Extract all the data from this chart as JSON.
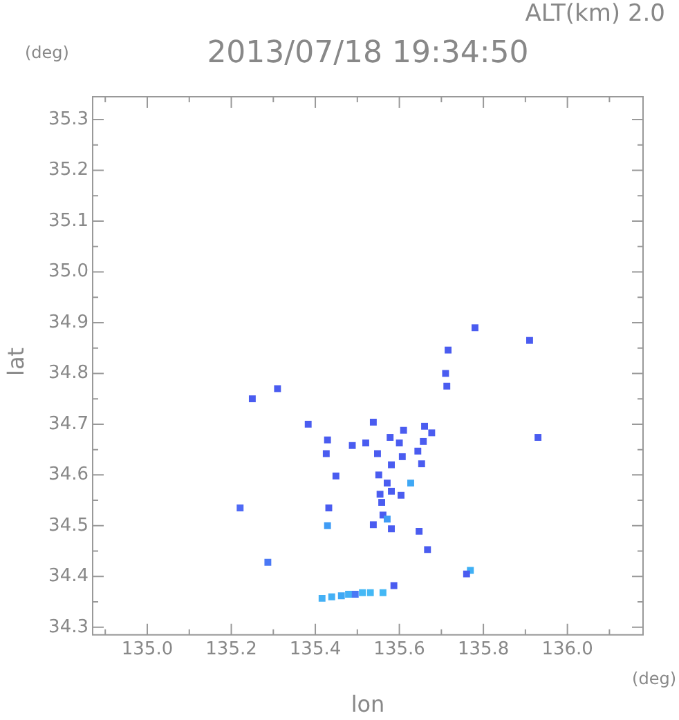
{
  "chart_data": {
    "type": "scatter",
    "title": "2013/07/18 19:34:50",
    "subtitle": "ALT(km) 2.0",
    "xlabel": "lon",
    "ylabel": "lat",
    "annotations": [
      "(deg)",
      "(deg)"
    ],
    "marker": "square",
    "grid": false,
    "xlim": [
      134.87,
      136.18
    ],
    "ylim": [
      34.285,
      35.345
    ],
    "xticks": [
      {
        "value": 134.9,
        "label": null
      },
      {
        "value": 135.0,
        "label": "135.0"
      },
      {
        "value": 135.1,
        "label": null
      },
      {
        "value": 135.2,
        "label": "135.2"
      },
      {
        "value": 135.3,
        "label": null
      },
      {
        "value": 135.4,
        "label": "135.4"
      },
      {
        "value": 135.5,
        "label": null
      },
      {
        "value": 135.6,
        "label": "135.6"
      },
      {
        "value": 135.7,
        "label": null
      },
      {
        "value": 135.8,
        "label": "135.8"
      },
      {
        "value": 135.9,
        "label": null
      },
      {
        "value": 136.0,
        "label": "136.0"
      },
      {
        "value": 136.1,
        "label": null
      }
    ],
    "yticks": [
      34.3,
      {
        "value": 34.35,
        "label": null
      },
      34.4,
      {
        "value": 34.45,
        "label": null
      },
      34.5,
      {
        "value": 34.55,
        "label": null
      },
      34.6,
      {
        "value": 34.65,
        "label": null
      },
      34.7,
      {
        "value": 34.75,
        "label": null
      },
      34.8,
      {
        "value": 34.85,
        "label": null
      },
      34.9,
      {
        "value": 34.95,
        "label": null
      },
      {
        "value": 35.0,
        "label": "35.0"
      },
      {
        "value": 35.05,
        "label": null
      },
      35.1,
      {
        "value": 35.15,
        "label": null
      },
      35.2,
      {
        "value": 35.25,
        "label": null
      },
      35.3
    ],
    "x": [
      135.221,
      135.287,
      135.429,
      135.31,
      135.25,
      135.416,
      135.439,
      135.462,
      135.479,
      135.495,
      135.512,
      135.531,
      135.561,
      135.587,
      135.769,
      135.76,
      135.93,
      135.78,
      135.91,
      135.716,
      135.71,
      135.713,
      135.383,
      135.538,
      135.66,
      135.61,
      135.677,
      135.429,
      135.52,
      135.578,
      135.6,
      135.657,
      135.488,
      135.426,
      135.607,
      135.644,
      135.548,
      135.581,
      135.653,
      135.449,
      135.551,
      135.627,
      135.571,
      135.581,
      135.604,
      135.554,
      135.432,
      135.558,
      135.561,
      135.571,
      135.538,
      135.581,
      135.647,
      135.667
    ],
    "values": [
      34.535,
      34.428,
      34.5,
      34.77,
      34.75,
      34.357,
      34.36,
      34.362,
      34.365,
      34.365,
      34.368,
      34.368,
      34.368,
      34.382,
      34.412,
      34.405,
      34.674,
      34.89,
      34.865,
      34.846,
      34.8,
      34.775,
      34.7,
      34.704,
      34.696,
      34.688,
      34.683,
      34.669,
      34.663,
      34.674,
      34.663,
      34.666,
      34.658,
      34.642,
      34.636,
      34.647,
      34.642,
      34.62,
      34.622,
      34.598,
      34.6,
      34.584,
      34.584,
      34.568,
      34.56,
      34.562,
      34.535,
      34.546,
      34.521,
      34.513,
      34.502,
      34.494,
      34.489,
      34.453
    ],
    "colors": [
      "#4f6af5",
      "#4a78f5",
      "#3f9cf5",
      "#4a5cf0",
      "#4a5cf0",
      "#44b0f5",
      "#44b0f5",
      "#3fa8f5",
      "#44b0f5",
      "#4a78f5",
      "#44b8f5",
      "#44b8f5",
      "#44b8f5",
      "#4a5cf0",
      "#3fb0f5",
      "#4a5cf0",
      "#4a5cf0",
      "#4a5cf0",
      "#4a5cf0",
      "#4a5cf0",
      "#4a5cf0",
      "#4a5cf0",
      "#4a5cf0",
      "#4a5cf0",
      "#4a5cf0",
      "#4a5cf0",
      "#4a5cf0",
      "#4a5cf0",
      "#4a5cf0",
      "#4a5cf0",
      "#4a5cf0",
      "#4a5cf0",
      "#4a5cf0",
      "#4a5cf0",
      "#4a5cf0",
      "#4a5cf0",
      "#4a5cf0",
      "#4a5cf0",
      "#4a5cf0",
      "#4a5cf0",
      "#4a5cf0",
      "#3fa8f5",
      "#4a5cf0",
      "#4a5cf0",
      "#4a5cf0",
      "#4a5cf0",
      "#4a5cf0",
      "#4a5cf0",
      "#4a5cf0",
      "#3f9cf5",
      "#4a5cf0",
      "#4a5cf0",
      "#4a5cf0",
      "#4a5cf0"
    ]
  }
}
